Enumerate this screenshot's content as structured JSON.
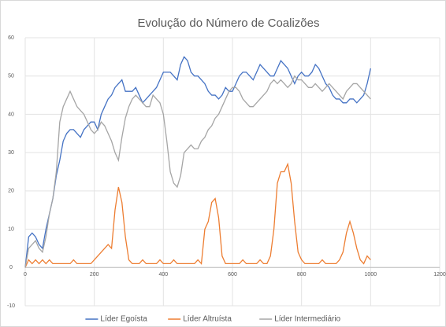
{
  "chart_data": {
    "type": "line",
    "title": "Evolução do Número de Coalizões",
    "x": [
      0,
      10,
      20,
      30,
      40,
      50,
      60,
      70,
      80,
      90,
      100,
      110,
      120,
      130,
      140,
      150,
      160,
      170,
      180,
      190,
      200,
      210,
      220,
      230,
      240,
      250,
      260,
      270,
      280,
      290,
      300,
      310,
      320,
      330,
      340,
      350,
      360,
      370,
      380,
      390,
      400,
      410,
      420,
      430,
      440,
      450,
      460,
      470,
      480,
      490,
      500,
      510,
      520,
      530,
      540,
      550,
      560,
      570,
      580,
      590,
      600,
      610,
      620,
      630,
      640,
      650,
      660,
      670,
      680,
      690,
      700,
      710,
      720,
      730,
      740,
      750,
      760,
      770,
      780,
      790,
      800,
      810,
      820,
      830,
      840,
      850,
      860,
      870,
      880,
      890,
      900,
      910,
      920,
      930,
      940,
      950,
      960,
      970,
      980,
      990,
      1000
    ],
    "series": [
      {
        "name": "Líder Egoísta",
        "color": "#4472c4",
        "values": [
          0,
          8,
          9,
          8,
          6,
          5,
          10,
          14,
          18,
          24,
          28,
          33,
          35,
          36,
          36,
          35,
          34,
          36,
          37,
          38,
          38,
          36,
          40,
          42,
          44,
          45,
          47,
          48,
          49,
          46,
          46,
          46,
          47,
          45,
          43,
          44,
          45,
          46,
          47,
          49,
          51,
          51,
          51,
          50,
          49,
          53,
          55,
          54,
          51,
          50,
          50,
          49,
          48,
          46,
          45,
          45,
          44,
          45,
          47,
          46,
          46,
          48,
          50,
          51,
          51,
          50,
          49,
          51,
          53,
          52,
          51,
          50,
          50,
          52,
          54,
          53,
          52,
          50,
          48,
          50,
          51,
          50,
          50,
          51,
          53,
          52,
          50,
          48,
          47,
          45,
          44,
          44,
          43,
          43,
          44,
          44,
          43,
          44,
          45,
          48,
          52
        ]
      },
      {
        "name": "Líder Altruísta",
        "color": "#ed7d31",
        "values": [
          0,
          2,
          1,
          2,
          1,
          2,
          1,
          2,
          1,
          1,
          1,
          1,
          1,
          1,
          2,
          1,
          1,
          1,
          1,
          1,
          2,
          3,
          4,
          5,
          6,
          5,
          15,
          21,
          17,
          8,
          2,
          1,
          1,
          1,
          2,
          1,
          1,
          1,
          1,
          2,
          1,
          1,
          1,
          2,
          1,
          1,
          1,
          1,
          1,
          1,
          2,
          1,
          10,
          12,
          17,
          18,
          13,
          3,
          1,
          1,
          1,
          1,
          1,
          2,
          1,
          1,
          1,
          1,
          2,
          1,
          1,
          3,
          10,
          22,
          25,
          25,
          27,
          22,
          12,
          4,
          2,
          1,
          1,
          1,
          1,
          1,
          2,
          1,
          1,
          1,
          1,
          2,
          4,
          9,
          12,
          9,
          5,
          2,
          1,
          3,
          2
        ]
      },
      {
        "name": "Líder Intermediário",
        "color": "#a5a5a5",
        "values": [
          0,
          5,
          6,
          7,
          5,
          4,
          8,
          14,
          18,
          25,
          38,
          42,
          44,
          46,
          44,
          42,
          41,
          40,
          38,
          36,
          35,
          36,
          38,
          37,
          35,
          33,
          30,
          28,
          34,
          39,
          42,
          44,
          45,
          44,
          43,
          42,
          42,
          45,
          44,
          43,
          40,
          33,
          25,
          22,
          21,
          24,
          30,
          31,
          32,
          31,
          31,
          33,
          34,
          36,
          37,
          39,
          40,
          42,
          44,
          46,
          47,
          47,
          46,
          44,
          43,
          42,
          42,
          43,
          44,
          45,
          46,
          48,
          49,
          48,
          49,
          48,
          47,
          48,
          50,
          49,
          49,
          48,
          47,
          47,
          48,
          47,
          46,
          47,
          48,
          47,
          46,
          45,
          44,
          46,
          47,
          48,
          48,
          47,
          46,
          45,
          44
        ]
      }
    ],
    "xlim": [
      0,
      1200
    ],
    "xticks": [
      0,
      200,
      400,
      600,
      800,
      1000,
      1200
    ],
    "ylim": [
      -10,
      60
    ],
    "yticks": [
      -10,
      0,
      10,
      20,
      30,
      40,
      50,
      60
    ],
    "grid": true,
    "legend": "bottom"
  }
}
